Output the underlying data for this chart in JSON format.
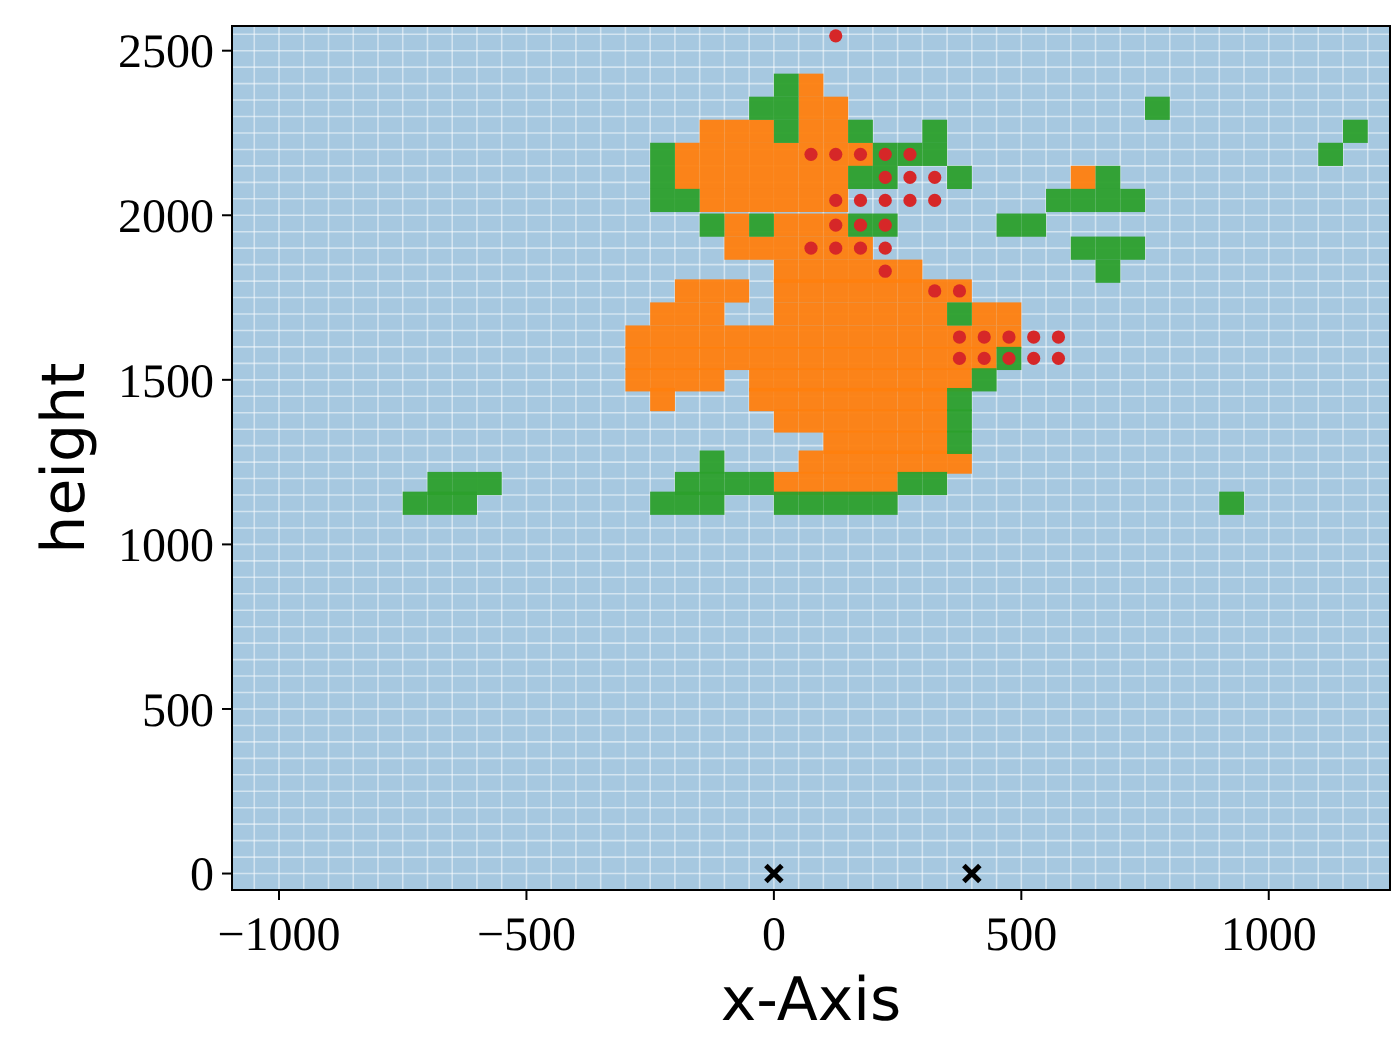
{
  "chart_data": {
    "type": "scatter",
    "xlabel": "x-Axis",
    "ylabel": "height",
    "xlim": [
      -1095,
      1245
    ],
    "ylim": [
      -50,
      2575
    ],
    "xticks": [
      {
        "value": -1000,
        "label": "−1000"
      },
      {
        "value": -500,
        "label": "−500"
      },
      0,
      500,
      1000
    ],
    "yticks": [
      0,
      500,
      1000,
      1500,
      2000,
      2500
    ],
    "grid": true,
    "series": [
      {
        "color": "#ff7f0e",
        "marker": "square",
        "x": [
          75,
          75,
          125,
          -125,
          -75,
          -25,
          75,
          125,
          -175,
          -125,
          -75,
          -25,
          25,
          75,
          125,
          175,
          -175,
          -125,
          -75,
          -25,
          25,
          75,
          125,
          625,
          -125,
          -75,
          -25,
          25,
          75,
          125,
          -75,
          25,
          75,
          125,
          -75,
          -25,
          25,
          75,
          125,
          175,
          25,
          75,
          125,
          175,
          225,
          275,
          -175,
          -125,
          -75,
          25,
          75,
          125,
          175,
          225,
          275,
          325,
          375,
          -225,
          -175,
          -125,
          25,
          75,
          125,
          175,
          225,
          275,
          325,
          425,
          475,
          -275,
          -225,
          -175,
          -125,
          -75,
          -25,
          25,
          75,
          125,
          175,
          225,
          275,
          325,
          375,
          425,
          475,
          -275,
          -225,
          -175,
          -125,
          -75,
          -25,
          25,
          75,
          125,
          175,
          225,
          275,
          325,
          375,
          425,
          -275,
          -225,
          -175,
          -125,
          -25,
          25,
          75,
          125,
          175,
          225,
          275,
          325,
          375,
          -225,
          -25,
          25,
          75,
          125,
          175,
          225,
          275,
          325,
          25,
          75,
          125,
          175,
          225,
          275,
          325,
          125,
          175,
          225,
          275,
          325,
          75,
          125,
          175,
          225,
          275,
          325,
          375,
          25,
          75,
          125,
          175,
          225
        ],
        "values": [
          2395,
          2325,
          2325,
          2255,
          2255,
          2255,
          2255,
          2255,
          2185,
          2185,
          2185,
          2185,
          2185,
          2185,
          2185,
          2185,
          2115,
          2115,
          2115,
          2115,
          2115,
          2115,
          2115,
          2115,
          2045,
          2045,
          2045,
          2045,
          2045,
          2045,
          1970,
          1970,
          1970,
          1970,
          1900,
          1900,
          1900,
          1900,
          1900,
          1900,
          1830,
          1830,
          1830,
          1830,
          1830,
          1830,
          1770,
          1770,
          1770,
          1770,
          1770,
          1770,
          1770,
          1770,
          1770,
          1770,
          1770,
          1700,
          1700,
          1700,
          1700,
          1700,
          1700,
          1700,
          1700,
          1700,
          1700,
          1700,
          1700,
          1630,
          1630,
          1630,
          1630,
          1630,
          1630,
          1630,
          1630,
          1630,
          1630,
          1630,
          1630,
          1630,
          1630,
          1630,
          1630,
          1565,
          1565,
          1565,
          1565,
          1565,
          1565,
          1565,
          1565,
          1565,
          1565,
          1565,
          1565,
          1565,
          1565,
          1565,
          1500,
          1500,
          1500,
          1500,
          1500,
          1500,
          1500,
          1500,
          1500,
          1500,
          1500,
          1500,
          1500,
          1440,
          1440,
          1440,
          1440,
          1440,
          1440,
          1440,
          1440,
          1440,
          1375,
          1375,
          1375,
          1375,
          1375,
          1375,
          1375,
          1310,
          1310,
          1310,
          1310,
          1310,
          1250,
          1250,
          1250,
          1250,
          1250,
          1250,
          1250,
          1185,
          1185,
          1185,
          1185,
          1185
        ]
      },
      {
        "color": "#2ca02c",
        "marker": "square",
        "x": [
          25,
          -25,
          25,
          775,
          25,
          175,
          325,
          1175,
          -225,
          225,
          275,
          325,
          1125,
          -225,
          175,
          225,
          375,
          675,
          -225,
          -175,
          575,
          625,
          675,
          725,
          -125,
          -25,
          175,
          225,
          475,
          525,
          625,
          675,
          725,
          675,
          375,
          475,
          425,
          375,
          375,
          375,
          -125,
          -675,
          -625,
          -575,
          -175,
          -125,
          -75,
          -25,
          275,
          325,
          -725,
          -675,
          -625,
          -225,
          -175,
          -125,
          25,
          75,
          125,
          175,
          225,
          925
        ],
        "values": [
          2395,
          2325,
          2325,
          2325,
          2255,
          2255,
          2255,
          2255,
          2185,
          2185,
          2185,
          2185,
          2185,
          2115,
          2115,
          2115,
          2115,
          2115,
          2045,
          2045,
          2045,
          2045,
          2045,
          2045,
          1970,
          1970,
          1970,
          1970,
          1970,
          1970,
          1900,
          1900,
          1900,
          1830,
          1700,
          1565,
          1500,
          1440,
          1375,
          1310,
          1250,
          1185,
          1185,
          1185,
          1185,
          1185,
          1185,
          1185,
          1185,
          1185,
          1125,
          1125,
          1125,
          1125,
          1125,
          1125,
          1125,
          1125,
          1125,
          1125,
          1125,
          1125
        ]
      },
      {
        "color": "#d62728",
        "marker": "circle",
        "x": [
          125,
          75,
          125,
          175,
          225,
          275,
          225,
          275,
          325,
          125,
          175,
          225,
          275,
          325,
          125,
          175,
          225,
          75,
          125,
          175,
          225,
          225,
          325,
          375,
          375,
          425,
          475,
          525,
          575,
          375,
          425,
          475,
          525,
          575
        ],
        "values": [
          2545,
          2185,
          2185,
          2185,
          2185,
          2185,
          2115,
          2115,
          2115,
          2045,
          2045,
          2045,
          2045,
          2045,
          1970,
          1970,
          1970,
          1900,
          1900,
          1900,
          1900,
          1830,
          1770,
          1770,
          1630,
          1630,
          1630,
          1630,
          1630,
          1565,
          1565,
          1565,
          1565,
          1565
        ]
      },
      {
        "color": "#000000",
        "marker": "cross",
        "x": [
          0,
          400
        ],
        "values": [
          0,
          0
        ]
      }
    ]
  }
}
